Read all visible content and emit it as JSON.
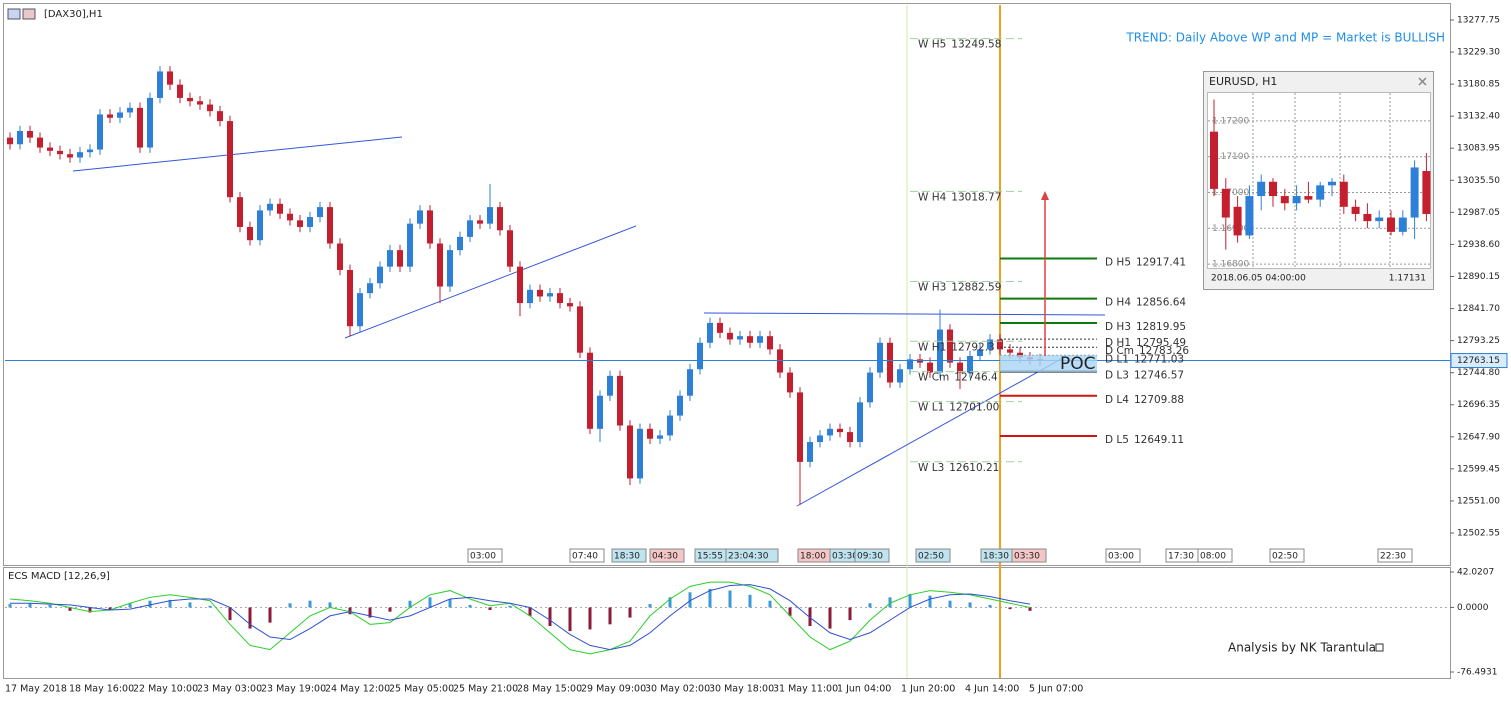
{
  "chart_data": {
    "type": "candlestick",
    "title": "[DAX30],H1",
    "annotation": "TREND: Daily Above WP and MP = Market is BULLISH",
    "ylim": [
      12454.2,
      13300.4
    ],
    "yticks": [
      13277.75,
      {
        "value": 13229.3,
        "label": "13229.30"
      },
      13180.85,
      {
        "value": 13132.4,
        "label": "13132.40"
      },
      13083.95,
      {
        "value": 13035.5,
        "label": "13035.50"
      },
      12987.05,
      {
        "value": 12938.6,
        "label": "12938.60"
      },
      12890.15,
      {
        "value": 12841.7,
        "label": "12841.70"
      },
      12793.25,
      {
        "value": 12744.8,
        "label": "12744.80"
      },
      12696.35,
      {
        "value": 12647.9,
        "label": "12647.90"
      },
      12599.45,
      {
        "value": 12551,
        "label": "12551.00"
      },
      12502.55
    ],
    "x_labels": [
      "17 May 2018",
      "18 May 16:00",
      "22 May 10:00",
      "23 May 03:00",
      "23 May 19:00",
      "24 May 12:00",
      "25 May 05:00",
      "25 May 21:00",
      "28 May 15:00",
      "29 May 09:00",
      "30 May 02:00",
      "30 May 18:00",
      "31 May 11:00",
      "1 Jun 04:00",
      "1 Jun 20:00",
      "4 Jun 14:00",
      "5 Jun 07:00"
    ],
    "up_color": "#2e7fd8",
    "down_color": "#c41f2f",
    "candles": [
      [
        13100,
        13108,
        13082,
        13090
      ],
      [
        13090,
        13118,
        13082,
        13110
      ],
      [
        13110,
        13118,
        13092,
        13100
      ],
      [
        13100,
        13108,
        13077,
        13085
      ],
      [
        13085,
        13093,
        13072,
        13080
      ],
      [
        13080,
        13088,
        13067,
        13075
      ],
      [
        13075,
        13083,
        13062,
        13070
      ],
      [
        13070,
        13086,
        13062,
        13078
      ],
      [
        13078,
        13090,
        13070,
        13082
      ],
      [
        13082,
        13143,
        13074,
        13135
      ],
      [
        13135,
        13143,
        13122,
        13130
      ],
      [
        13130,
        13146,
        13122,
        13138
      ],
      [
        13138,
        13153,
        13130,
        13145
      ],
      [
        13145,
        13153,
        13077,
        13085
      ],
      [
        13085,
        13168,
        13077,
        13160
      ],
      [
        13160,
        13208,
        13152,
        13200
      ],
      [
        13200,
        13208,
        13172,
        13180
      ],
      [
        13180,
        13188,
        13152,
        13160
      ],
      [
        13160,
        13168,
        13147,
        13155
      ],
      [
        13155,
        13163,
        13142,
        13150
      ],
      [
        13150,
        13158,
        13132,
        13140
      ],
      [
        13140,
        13148,
        13117,
        13125
      ],
      [
        13125,
        13133,
        13002,
        13010
      ],
      [
        13010,
        13018,
        12957,
        12965
      ],
      [
        12965,
        12973,
        12937,
        12945
      ],
      [
        12945,
        12998,
        12937,
        12990
      ],
      [
        12990,
        13008,
        12982,
        13000
      ],
      [
        13000,
        13008,
        12977,
        12985
      ],
      [
        12985,
        12993,
        12967,
        12975
      ],
      [
        12975,
        12983,
        12957,
        12965
      ],
      [
        12965,
        12988,
        12957,
        12980
      ],
      [
        12980,
        13003,
        12972,
        12995
      ],
      [
        12995,
        13003,
        12932,
        12940
      ],
      [
        12940,
        12948,
        12892,
        12900
      ],
      [
        12900,
        12908,
        12800,
        12815
      ],
      [
        12815,
        12873,
        12807,
        12865
      ],
      [
        12865,
        12888,
        12857,
        12880
      ],
      [
        12880,
        12913,
        12872,
        12905
      ],
      [
        12905,
        12938,
        12897,
        12930
      ],
      [
        12930,
        12938,
        12897,
        12905
      ],
      [
        12905,
        12978,
        12897,
        12970
      ],
      [
        12970,
        12998,
        12962,
        12990
      ],
      [
        12990,
        12998,
        12932,
        12940
      ],
      [
        12940,
        12948,
        12850,
        12875
      ],
      [
        12875,
        12938,
        12867,
        12930
      ],
      [
        12930,
        12958,
        12922,
        12950
      ],
      [
        12950,
        12983,
        12942,
        12975
      ],
      [
        12975,
        12983,
        12962,
        12970
      ],
      [
        12970,
        13030,
        12962,
        12995
      ],
      [
        12995,
        13003,
        12952,
        12960
      ],
      [
        12960,
        12968,
        12897,
        12905
      ],
      [
        12905,
        12913,
        12830,
        12850
      ],
      [
        12850,
        12878,
        12842,
        12870
      ],
      [
        12870,
        12878,
        12852,
        12860
      ],
      [
        12860,
        12873,
        12852,
        12865
      ],
      [
        12865,
        12873,
        12842,
        12850
      ],
      [
        12850,
        12858,
        12837,
        12845
      ],
      [
        12845,
        12853,
        12767,
        12775
      ],
      [
        12775,
        12783,
        12652,
        12660
      ],
      [
        12660,
        12718,
        12640,
        12710
      ],
      [
        12710,
        12748,
        12702,
        12740
      ],
      [
        12740,
        12748,
        12657,
        12665
      ],
      [
        12665,
        12673,
        12575,
        12585
      ],
      [
        12585,
        12668,
        12577,
        12660
      ],
      [
        12660,
        12668,
        12637,
        12645
      ],
      [
        12645,
        12658,
        12637,
        12650
      ],
      [
        12650,
        12688,
        12642,
        12680
      ],
      [
        12680,
        12718,
        12672,
        12710
      ],
      [
        12710,
        12758,
        12702,
        12750
      ],
      [
        12750,
        12798,
        12742,
        12790
      ],
      [
        12790,
        12828,
        12782,
        12820
      ],
      [
        12820,
        12828,
        12797,
        12805
      ],
      [
        12805,
        12813,
        12787,
        12795
      ],
      [
        12795,
        12808,
        12787,
        12800
      ],
      [
        12800,
        12808,
        12782,
        12790
      ],
      [
        12790,
        12808,
        12782,
        12800
      ],
      [
        12800,
        12808,
        12772,
        12780
      ],
      [
        12780,
        12788,
        12737,
        12745
      ],
      [
        12745,
        12753,
        12707,
        12715
      ],
      [
        12715,
        12723,
        12545,
        12610
      ],
      [
        12610,
        12648,
        12602,
        12640
      ],
      [
        12640,
        12658,
        12632,
        12650
      ],
      [
        12650,
        12668,
        12642,
        12660
      ],
      [
        12660,
        12668,
        12647,
        12655
      ],
      [
        12655,
        12663,
        12632,
        12640
      ],
      [
        12640,
        12708,
        12632,
        12700
      ],
      [
        12700,
        12753,
        12692,
        12745
      ],
      [
        12745,
        12798,
        12737,
        12790
      ],
      [
        12790,
        12798,
        12722,
        12730
      ],
      [
        12730,
        12758,
        12722,
        12750
      ],
      [
        12750,
        12773,
        12742,
        12765
      ],
      [
        12765,
        12773,
        12752,
        12760
      ],
      [
        12760,
        12768,
        12737,
        12745
      ],
      [
        12745,
        12840,
        12737,
        12810
      ],
      [
        12810,
        12818,
        12752,
        12760
      ],
      [
        12760,
        12768,
        12720,
        12745
      ],
      [
        12745,
        12778,
        12737,
        12770
      ],
      [
        12770,
        12788,
        12762,
        12780
      ],
      [
        12780,
        12803,
        12772,
        12795
      ],
      [
        12795,
        12803,
        12772,
        12780
      ],
      [
        12780,
        12788,
        12767,
        12775
      ],
      [
        12775,
        12783,
        12760,
        12768
      ],
      [
        12768,
        12776,
        12757,
        12765
      ],
      [
        12765,
        12773,
        12755,
        12763.15
      ]
    ],
    "current_price": 12763.15,
    "weekly_levels": [
      {
        "name": "W H5",
        "value": 13249.58
      },
      {
        "name": "W H4",
        "value": 13018.77
      },
      {
        "name": "W H3",
        "value": 12882.59
      },
      {
        "name": "W H1",
        "value": 12792.3
      },
      {
        "name": "W Cm",
        "value": 12746.4
      },
      {
        "name": "W L1",
        "value": {
          "value": 12701,
          "label": "12701.00"
        }
      },
      {
        "name": "W L3",
        "value": 12610.21
      }
    ],
    "daily_levels": [
      {
        "name": "D H5",
        "value": 12917.41,
        "color": "#0d7a0d"
      },
      {
        "name": "D H4",
        "value": 12856.64,
        "color": "#0d7a0d"
      },
      {
        "name": "D H3",
        "value": 12819.95,
        "color": "#0d7a0d"
      },
      {
        "name": "D H1",
        "value": 12795.49,
        "color": "#333333"
      },
      {
        "name": "D Cm",
        "value": 12783.26,
        "color": "#333333"
      },
      {
        "name": "D L1",
        "value": 12771.03,
        "color": "#333333"
      },
      {
        "name": "D L3",
        "value": 12746.57,
        "color": "#111111"
      },
      {
        "name": "D L4",
        "value": 12709.88,
        "color": "#d01515"
      },
      {
        "name": "D L5",
        "value": 12649.11,
        "color": "#d01515"
      }
    ],
    "poc_label": "POC",
    "session_labels": [
      {
        "text": "03:00",
        "color": "#ffffff"
      },
      {
        "text": "07:40",
        "color": "#ffffff"
      },
      {
        "text": "18:30",
        "color": "#bfe3ef"
      },
      {
        "text": "04:30",
        "color": "#f5c6c6"
      },
      {
        "text": "15:55",
        "color": "#bfe3ef"
      },
      {
        "text": "23:04:30",
        "color": "#bfe3ef"
      },
      {
        "text": "18:00",
        "color": "#f5c6c6"
      },
      {
        "text": "03:30",
        "color": "#bfe3ef"
      },
      {
        "text": "09:30",
        "color": "#bfe3ef"
      },
      {
        "text": "02:50",
        "color": "#bfe3ef"
      },
      {
        "text": "18:30",
        "color": "#bfe3ef"
      },
      {
        "text": "03:30",
        "color": "#f5c6c6"
      },
      {
        "text": "03:00",
        "color": "#ffffff"
      },
      {
        "text": "17:30",
        "color": "#ffffff"
      },
      {
        "text": "08:00",
        "color": "#ffffff"
      },
      {
        "text": "02:50",
        "color": "#ffffff"
      },
      {
        "text": "22:30",
        "color": "#ffffff"
      }
    ],
    "inset": {
      "title": "EURUSD, H1",
      "ylim": [
        1.16789,
        1.17278
      ],
      "yticks": [
        {
          "value": 1.172,
          "label": "1.17200"
        },
        {
          "value": 1.171,
          "label": "1.17100"
        },
        {
          "value": 1.17,
          "label": "1.17000"
        },
        {
          "value": 1.169,
          "label": "1.16900"
        },
        {
          "value": 1.168,
          "label": "1.16800"
        }
      ],
      "candles": [
        [
          1.1717,
          1.1726,
          1.1699,
          1.1701
        ],
        [
          1.1701,
          1.1704,
          1.1684,
          1.1693
        ],
        [
          1.1696,
          1.1699,
          1.1686,
          1.1688
        ],
        [
          1.1688,
          1.1702,
          1.1687,
          1.1699
        ],
        [
          1.1699,
          1.1705,
          1.1695,
          1.1703
        ],
        [
          1.1703,
          1.1704,
          1.1696,
          1.1699
        ],
        [
          1.1699,
          1.1701,
          1.1695,
          1.1697
        ],
        [
          1.1697,
          1.1702,
          1.1695,
          1.1699
        ],
        [
          1.1699,
          1.1703,
          1.1697,
          1.1698
        ],
        [
          1.1698,
          1.1703,
          1.1696,
          1.1702
        ],
        [
          1.1702,
          1.1704,
          1.1699,
          1.1703
        ],
        [
          1.1703,
          1.1705,
          1.1694,
          1.1696
        ],
        [
          1.1696,
          1.1698,
          1.1692,
          1.1694
        ],
        [
          1.1694,
          1.1697,
          1.169,
          1.1692
        ],
        [
          1.1692,
          1.1695,
          1.169,
          1.1693
        ],
        [
          1.1693,
          1.1695,
          1.1688,
          1.1689
        ],
        [
          1.1689,
          1.1695,
          1.1688,
          1.1693
        ],
        [
          1.1693,
          1.1709,
          1.1687,
          1.1707
        ],
        [
          1.1706,
          1.1711,
          1.1692,
          1.1694
        ]
      ],
      "time": "2018.06.05 04:00:00",
      "last_price": 1.17131
    },
    "macd": {
      "title": "ECS MACD [12,26,9]",
      "ylim": [
        -76.4931,
        42.0207
      ],
      "yticks": [
        42.0207,
        {
          "value": 0,
          "label": "0.0000"
        },
        -76.4931
      ],
      "positive_color": "#3a9ad9",
      "negative_color": "#8b1a3a",
      "histogram": [
        4,
        5,
        3,
        -4,
        -6,
        -3,
        5,
        8,
        9,
        6,
        2,
        -15,
        -25,
        -18,
        5,
        8,
        6,
        -8,
        -12,
        -5,
        8,
        12,
        10,
        3,
        -3,
        2,
        -10,
        -22,
        -28,
        -26,
        -20,
        -12,
        4,
        12,
        18,
        22,
        20,
        15,
        8,
        -10,
        -22,
        -25,
        -15,
        5,
        12,
        16,
        14,
        8,
        6,
        3,
        -2,
        -4
      ],
      "main": {
        "color": "#2bcf2b",
        "values": [
          10,
          8,
          5,
          0,
          -5,
          -3,
          5,
          12,
          15,
          12,
          8,
          -20,
          -45,
          -50,
          -30,
          -10,
          0,
          -5,
          -20,
          -18,
          0,
          15,
          20,
          10,
          2,
          5,
          -10,
          -30,
          -50,
          -55,
          -50,
          -40,
          -10,
          10,
          25,
          30,
          30,
          25,
          15,
          -10,
          -35,
          -50,
          -40,
          -15,
          5,
          15,
          20,
          18,
          15,
          10,
          5,
          0
        ]
      },
      "signal": {
        "color": "#3050d0",
        "values": [
          5,
          5,
          4,
          3,
          0,
          -3,
          -2,
          3,
          8,
          10,
          10,
          0,
          -20,
          -35,
          -38,
          -25,
          -10,
          -5,
          -10,
          -15,
          -10,
          0,
          10,
          12,
          8,
          5,
          0,
          -15,
          -32,
          -45,
          -50,
          -45,
          -30,
          -10,
          8,
          20,
          26,
          27,
          22,
          8,
          -12,
          -30,
          -38,
          -30,
          -15,
          0,
          10,
          15,
          16,
          13,
          8,
          4
        ]
      }
    },
    "credit": "Analysis by NK Tarantula"
  }
}
